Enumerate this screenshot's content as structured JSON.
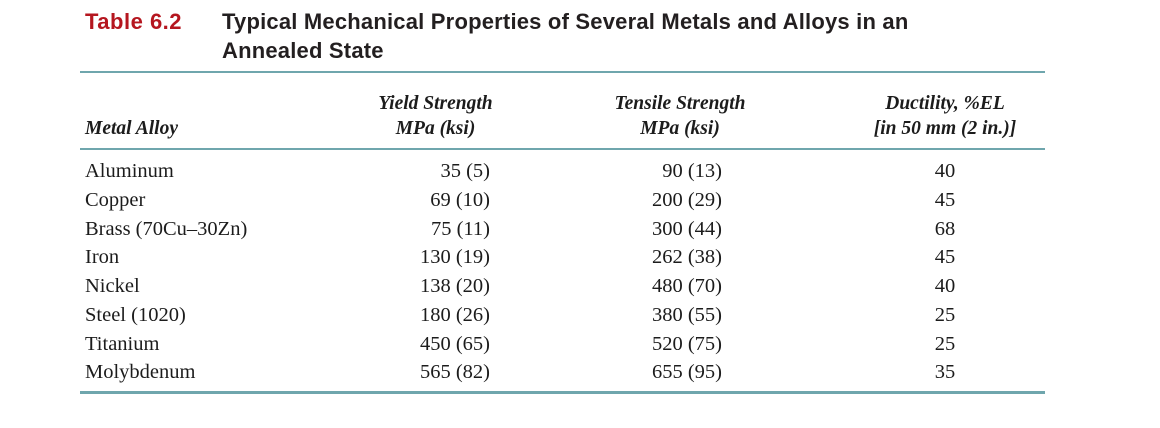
{
  "caption": {
    "label": "Table 6.2",
    "title_line1": "Typical Mechanical Properties of Several Metals and Alloys in an",
    "title_line2": "Annealed State"
  },
  "table": {
    "headers": {
      "metal_alloy": "Metal Alloy",
      "yield_line1": "Yield Strength",
      "yield_line2": "MPa (ksi)",
      "tensile_line1": "Tensile Strength",
      "tensile_line2": "MPa (ksi)",
      "ductility_line1": "Ductility, %EL",
      "ductility_line2": "[in 50 mm (2 in.)]"
    },
    "rows": [
      {
        "alloy": "Aluminum",
        "yield_strength": "35 (5)",
        "tensile_strength": "90 (13)",
        "ductility_percent_el": "40"
      },
      {
        "alloy": "Copper",
        "yield_strength": "69 (10)",
        "tensile_strength": "200 (29)",
        "ductility_percent_el": "45"
      },
      {
        "alloy": "Brass (70Cu–30Zn)",
        "yield_strength": "75 (11)",
        "tensile_strength": "300 (44)",
        "ductility_percent_el": "68"
      },
      {
        "alloy": "Iron",
        "yield_strength": "130 (19)",
        "tensile_strength": "262 (38)",
        "ductility_percent_el": "45"
      },
      {
        "alloy": "Nickel",
        "yield_strength": "138 (20)",
        "tensile_strength": "480 (70)",
        "ductility_percent_el": "40"
      },
      {
        "alloy": "Steel (1020)",
        "yield_strength": "180 (26)",
        "tensile_strength": "380 (55)",
        "ductility_percent_el": "25"
      },
      {
        "alloy": "Titanium",
        "yield_strength": "450 (65)",
        "tensile_strength": "520 (75)",
        "ductility_percent_el": "25"
      },
      {
        "alloy": "Molybdenum",
        "yield_strength": "565 (82)",
        "tensile_strength": "655 (95)",
        "ductility_percent_el": "35"
      }
    ]
  },
  "colors": {
    "accent_red": "#b5161f",
    "rule_teal": "#6fa6ad"
  }
}
